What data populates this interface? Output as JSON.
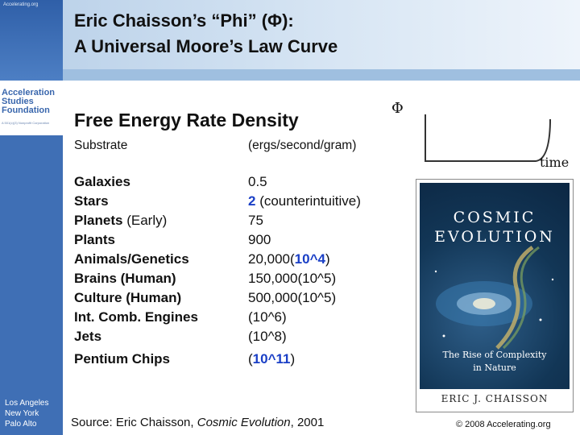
{
  "sidebar": {
    "url": "Accelerating.org",
    "logo_lines": [
      "Acceleration",
      "Studies",
      "Foundation"
    ],
    "logo_sub": "A 501(c)(3) Nonprofit Corporation",
    "cities": [
      "Los Angeles",
      "New York",
      "Palo Alto"
    ]
  },
  "title": {
    "line1": "Eric Chaisson’s “Phi” (Φ):",
    "line2": "A Universal Moore’s Law Curve"
  },
  "heading": "Free Energy Rate Density",
  "columns": {
    "substrate": "Substrate",
    "units": "(ergs/second/gram)"
  },
  "rows": [
    {
      "name": "Galaxies",
      "name_note": "",
      "value": "0.5",
      "value_note": "",
      "value_style": "plain"
    },
    {
      "name": "Stars",
      "name_note": "",
      "value": "2",
      "value_note": " (counterintuitive)",
      "value_style": "blue"
    },
    {
      "name": "Planets",
      "name_note": " (Early)",
      "value": "75",
      "value_note": "",
      "value_style": "plain"
    },
    {
      "name": "Plants",
      "name_note": "",
      "value": "900",
      "value_note": "",
      "value_style": "plain"
    },
    {
      "name": "Animals/Genetics",
      "name_note": "",
      "value": "20,000(",
      "value_blue": "10^4",
      "value_tail": ")",
      "value_style": "mixed"
    },
    {
      "name": "Brains (Human)",
      "name_note": "",
      "value": "150,000(10^5)",
      "value_note": "",
      "value_style": "plain"
    },
    {
      "name": "Culture (Human)",
      "name_note": "",
      "value": "500,000(10^5)",
      "value_note": "",
      "value_style": "plain"
    },
    {
      "name": "Int. Comb. Engines",
      "name_note": "",
      "value": "(10^6)",
      "value_note": "",
      "value_style": "plain"
    },
    {
      "name": "Jets",
      "name_note": "",
      "value": "(10^8)",
      "value_note": "",
      "value_style": "plain"
    },
    {
      "name": "Pentium Chips",
      "name_note": "",
      "value": "(",
      "value_blue": "10^11",
      "value_tail": ")",
      "value_style": "mixed"
    }
  ],
  "curve": {
    "y_label": "Φ",
    "x_label": "time"
  },
  "book": {
    "title_line1": "COSMIC",
    "title_line2": "EVOLUTION",
    "subtitle_line1": "The Rise of Complexity",
    "subtitle_line2": "in Nature",
    "author": "ERIC J. CHAISSON"
  },
  "footer": {
    "source_prefix": "Source: Eric Chaisson, ",
    "source_title": "Cosmic Evolution",
    "source_suffix": ", 2001",
    "copyright": "© 2008 Accelerating.org"
  }
}
